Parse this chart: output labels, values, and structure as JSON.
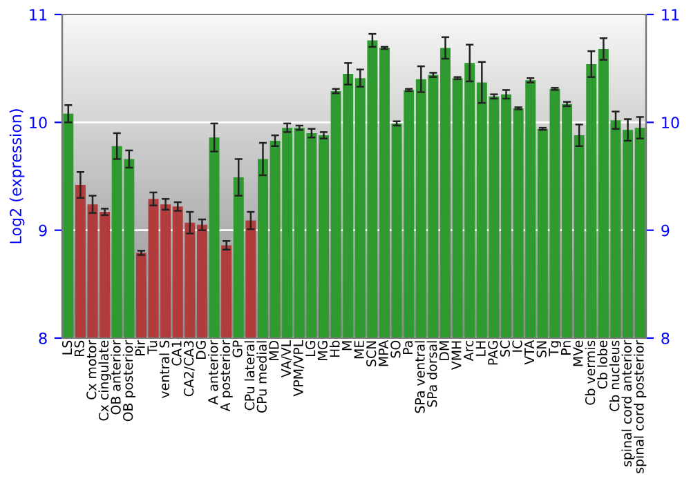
{
  "chart_data": {
    "type": "bar",
    "ylabel": "Log2 (expression)",
    "categories": [
      "LS",
      "RS",
      "Cx motor",
      "Cx cingulate",
      "OB anterior",
      "OB posterior",
      "Pir",
      "Tu",
      "ventral S",
      "CA1",
      "CA2/CA3",
      "DG",
      "A anterior",
      "A posterior",
      "GP",
      "CPu lateral",
      "CPu medial",
      "MD",
      "VA/VL",
      "VPM/VPL",
      "LG",
      "MG",
      "Hb",
      "M",
      "ME",
      "SCN",
      "MPA",
      "SO",
      "Pa",
      "SPa ventral",
      "SPa dorsal",
      "DM",
      "VMH",
      "Arc",
      "LH",
      "PAG",
      "SC",
      "IC",
      "VTA",
      "SN",
      "Tg",
      "Pn",
      "MVe",
      "Cb vermis",
      "Cb lobe",
      "Cb nucleus",
      "spinal cord anterior",
      "spinal cord posterior"
    ],
    "values": [
      10.08,
      9.42,
      9.24,
      9.17,
      9.78,
      9.66,
      8.79,
      9.29,
      9.24,
      9.22,
      9.07,
      9.05,
      9.86,
      8.86,
      9.49,
      9.09,
      9.66,
      9.83,
      9.95,
      9.95,
      9.9,
      9.88,
      10.29,
      10.45,
      10.41,
      10.76,
      10.69,
      9.99,
      10.3,
      10.4,
      10.44,
      10.69,
      10.41,
      10.55,
      10.37,
      10.24,
      10.26,
      10.13,
      10.39,
      9.94,
      10.31,
      10.17,
      9.88,
      10.54,
      10.68,
      10.02,
      9.93,
      9.95
    ],
    "errors": [
      0.08,
      0.12,
      0.08,
      0.03,
      0.12,
      0.08,
      0.02,
      0.06,
      0.05,
      0.04,
      0.1,
      0.05,
      0.13,
      0.04,
      0.17,
      0.08,
      0.15,
      0.05,
      0.04,
      0.02,
      0.04,
      0.03,
      0.02,
      0.1,
      0.08,
      0.06,
      0.01,
      0.02,
      0.01,
      0.12,
      0.02,
      0.1,
      0.01,
      0.17,
      0.19,
      0.02,
      0.04,
      0.01,
      0.02,
      0.01,
      0.01,
      0.02,
      0.1,
      0.12,
      0.1,
      0.08,
      0.1,
      0.1
    ],
    "colors": [
      "#2f9a2f",
      "#b03c3c",
      "#b03c3c",
      "#b03c3c",
      "#2f9a2f",
      "#2f9a2f",
      "#b03c3c",
      "#b03c3c",
      "#b03c3c",
      "#b03c3c",
      "#b03c3c",
      "#b03c3c",
      "#2f9a2f",
      "#b03c3c",
      "#2f9a2f",
      "#b03c3c",
      "#2f9a2f",
      "#2f9a2f",
      "#2f9a2f",
      "#2f9a2f",
      "#2f9a2f",
      "#2f9a2f",
      "#2f9a2f",
      "#2f9a2f",
      "#2f9a2f",
      "#2f9a2f",
      "#2f9a2f",
      "#2f9a2f",
      "#2f9a2f",
      "#2f9a2f",
      "#2f9a2f",
      "#2f9a2f",
      "#2f9a2f",
      "#2f9a2f",
      "#2f9a2f",
      "#2f9a2f",
      "#2f9a2f",
      "#2f9a2f",
      "#2f9a2f",
      "#2f9a2f",
      "#2f9a2f",
      "#2f9a2f",
      "#2f9a2f",
      "#2f9a2f",
      "#2f9a2f",
      "#2f9a2f",
      "#2f9a2f",
      "#2f9a2f"
    ],
    "ylim": [
      8,
      11
    ],
    "yticks": [
      8,
      9,
      10,
      11
    ],
    "y2lim": [
      8,
      11
    ],
    "y2ticks": [
      8,
      9,
      10,
      11
    ],
    "grid": "y"
  }
}
